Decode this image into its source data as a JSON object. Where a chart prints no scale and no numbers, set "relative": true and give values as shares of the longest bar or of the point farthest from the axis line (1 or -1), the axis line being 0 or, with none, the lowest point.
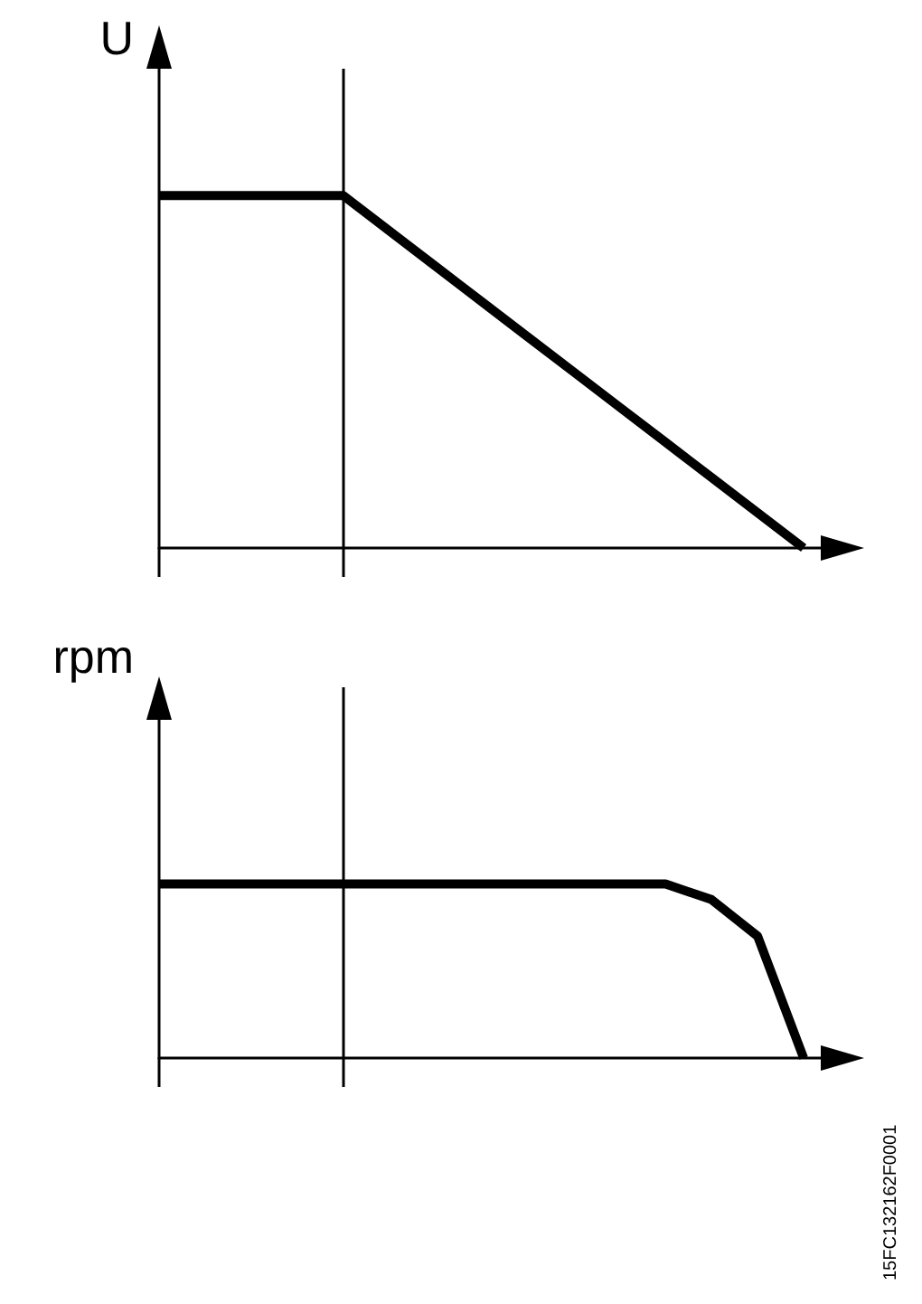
{
  "chart_data": [
    {
      "type": "line",
      "ylabel": "U",
      "relative": true,
      "categories": [
        null,
        null,
        null,
        null,
        null,
        null,
        null,
        null,
        null,
        null,
        null,
        null,
        null,
        null,
        null,
        null
      ],
      "grid": false,
      "marker": "none",
      "line_style": "solid",
      "series": [
        {
          "color": "#000000",
          "values": [
            1,
            1,
            1,
            1,
            1,
            0.9,
            0.8,
            0.7,
            0.6,
            0.5,
            0.4,
            0.3,
            0.2,
            0.1,
            0,
            null
          ]
        }
      ]
    },
    {
      "type": "line",
      "ylabel": "rpm",
      "relative": true,
      "categories": [
        null,
        null,
        null,
        null,
        null,
        null,
        null,
        null,
        null,
        null,
        null,
        null,
        null,
        null,
        null,
        null
      ],
      "grid": false,
      "marker": "none",
      "line_style": "solid",
      "series": [
        {
          "color": "#000000",
          "values": [
            1,
            1,
            1,
            1,
            1,
            1,
            1,
            1,
            1,
            1,
            1,
            1,
            0.91,
            0.7,
            0,
            null
          ]
        }
      ],
      "annotations": [
        "15FC132162F0001"
      ]
    }
  ]
}
